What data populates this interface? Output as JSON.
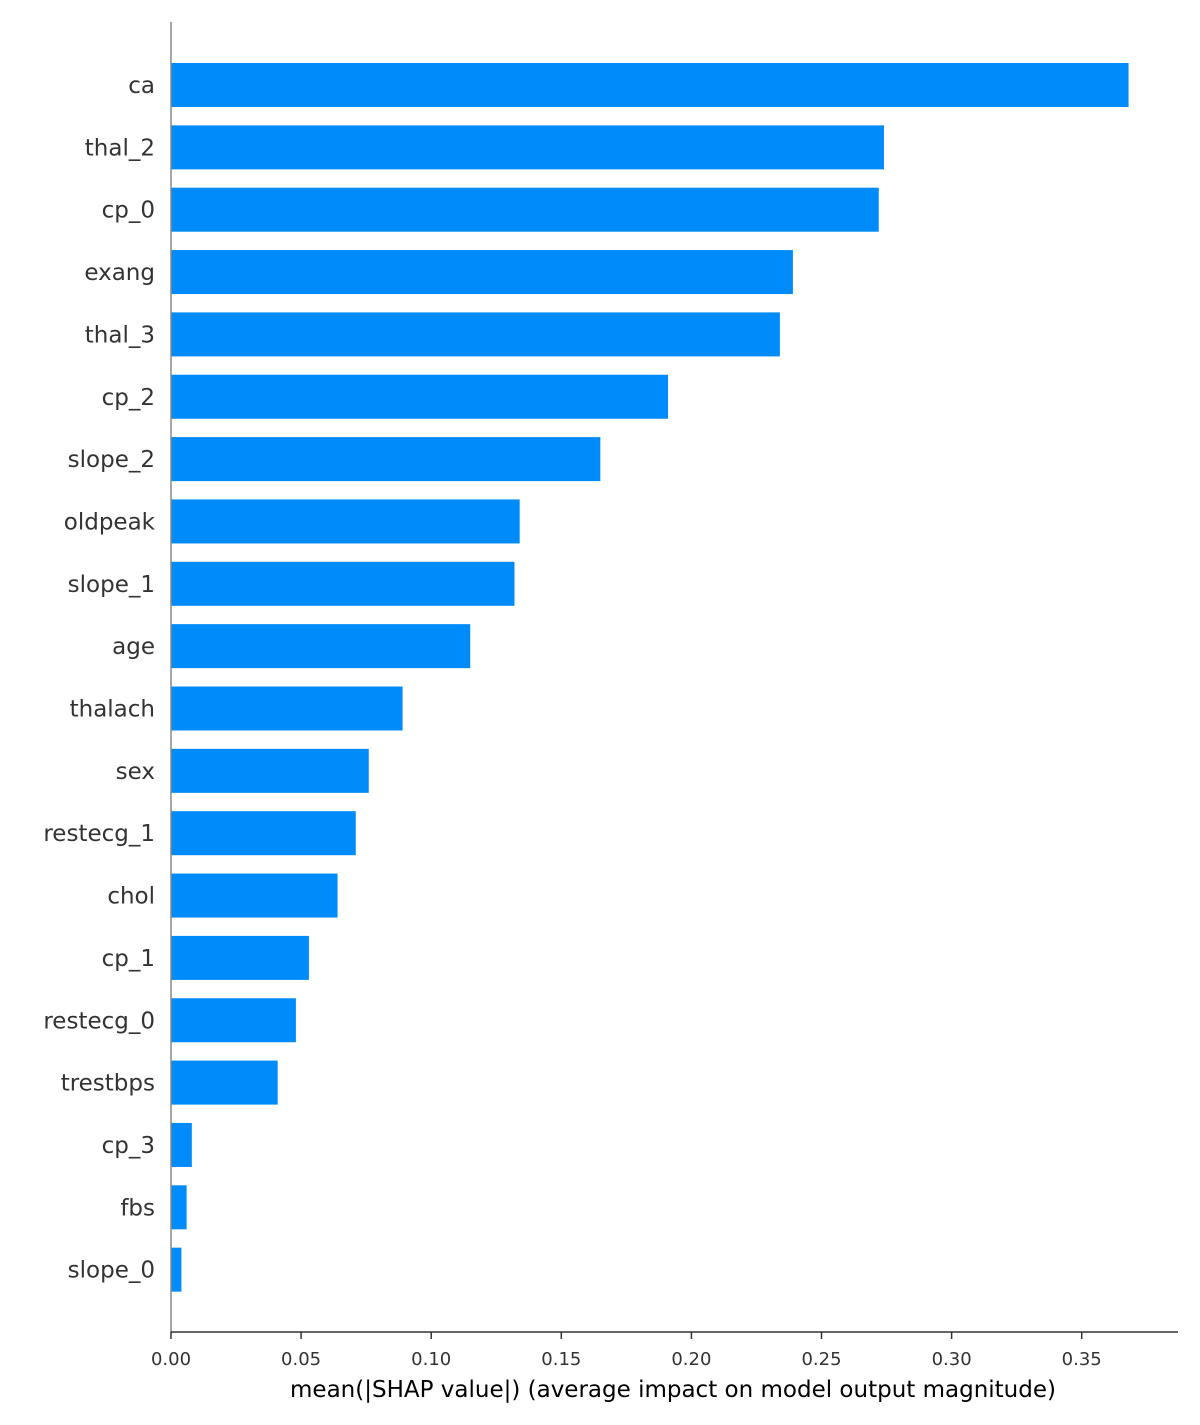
{
  "chart_data": {
    "type": "bar",
    "orientation": "horizontal",
    "title": "",
    "xlabel": "mean(|SHAP value|) (average impact on model output magnitude)",
    "ylabel": "",
    "categories": [
      "ca",
      "thal_2",
      "cp_0",
      "exang",
      "thal_3",
      "cp_2",
      "slope_2",
      "oldpeak",
      "slope_1",
      "age",
      "thalach",
      "sex",
      "restecg_1",
      "chol",
      "cp_1",
      "restecg_0",
      "trestbps",
      "cp_3",
      "fbs",
      "slope_0"
    ],
    "values": [
      0.368,
      0.274,
      0.272,
      0.239,
      0.234,
      0.191,
      0.165,
      0.134,
      0.132,
      0.115,
      0.089,
      0.076,
      0.071,
      0.064,
      0.053,
      0.048,
      0.041,
      0.008,
      0.006,
      0.004
    ],
    "xlim": [
      0,
      0.387
    ],
    "xticks": [
      0.0,
      0.05,
      0.1,
      0.15,
      0.2,
      0.25,
      0.3,
      0.35
    ],
    "xtick_labels": [
      "0.00",
      "0.05",
      "0.10",
      "0.15",
      "0.20",
      "0.25",
      "0.30",
      "0.35"
    ],
    "bar_color": "#008bfb",
    "axis_color": "#333333",
    "grid": false,
    "legend": "none"
  }
}
